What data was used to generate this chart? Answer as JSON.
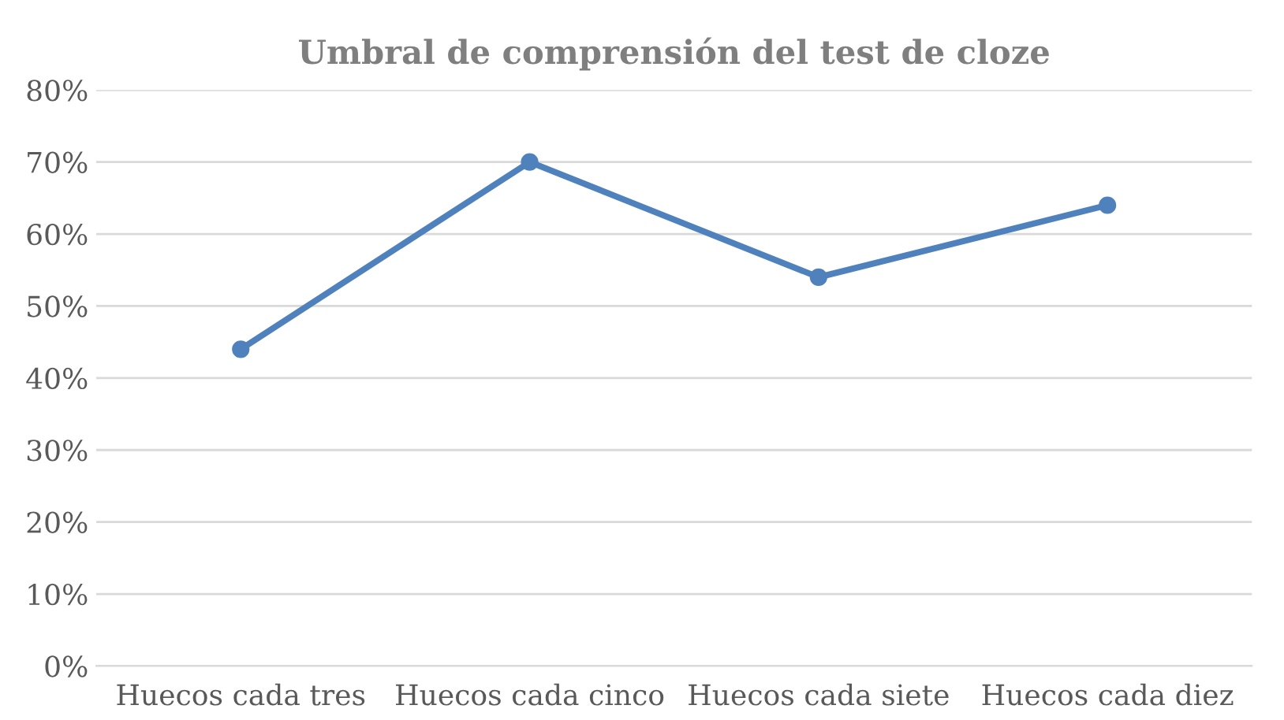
{
  "chart_data": {
    "type": "line",
    "title": "Umbral de comprensión del test de cloze",
    "categories": [
      "Huecos cada tres",
      "Huecos cada cinco",
      "Huecos cada siete",
      "Huecos cada diez"
    ],
    "series": [
      {
        "color": "#4f81bd",
        "values": [
          44,
          70,
          54,
          64
        ]
      }
    ],
    "ylim": [
      0,
      80
    ],
    "yticks": [
      {
        "value": 0,
        "label": "0%"
      },
      {
        "value": 10,
        "label": "10%"
      },
      {
        "value": 20,
        "label": "20%"
      },
      {
        "value": 30,
        "label": "30%"
      },
      {
        "value": 40,
        "label": "40%"
      },
      {
        "value": 50,
        "label": "50%"
      },
      {
        "value": 60,
        "label": "60%"
      },
      {
        "value": 70,
        "label": "70%"
      },
      {
        "value": 80,
        "label": "80%"
      }
    ],
    "grid": "y",
    "marker": "circle",
    "line_style": "solid",
    "legend": false
  }
}
